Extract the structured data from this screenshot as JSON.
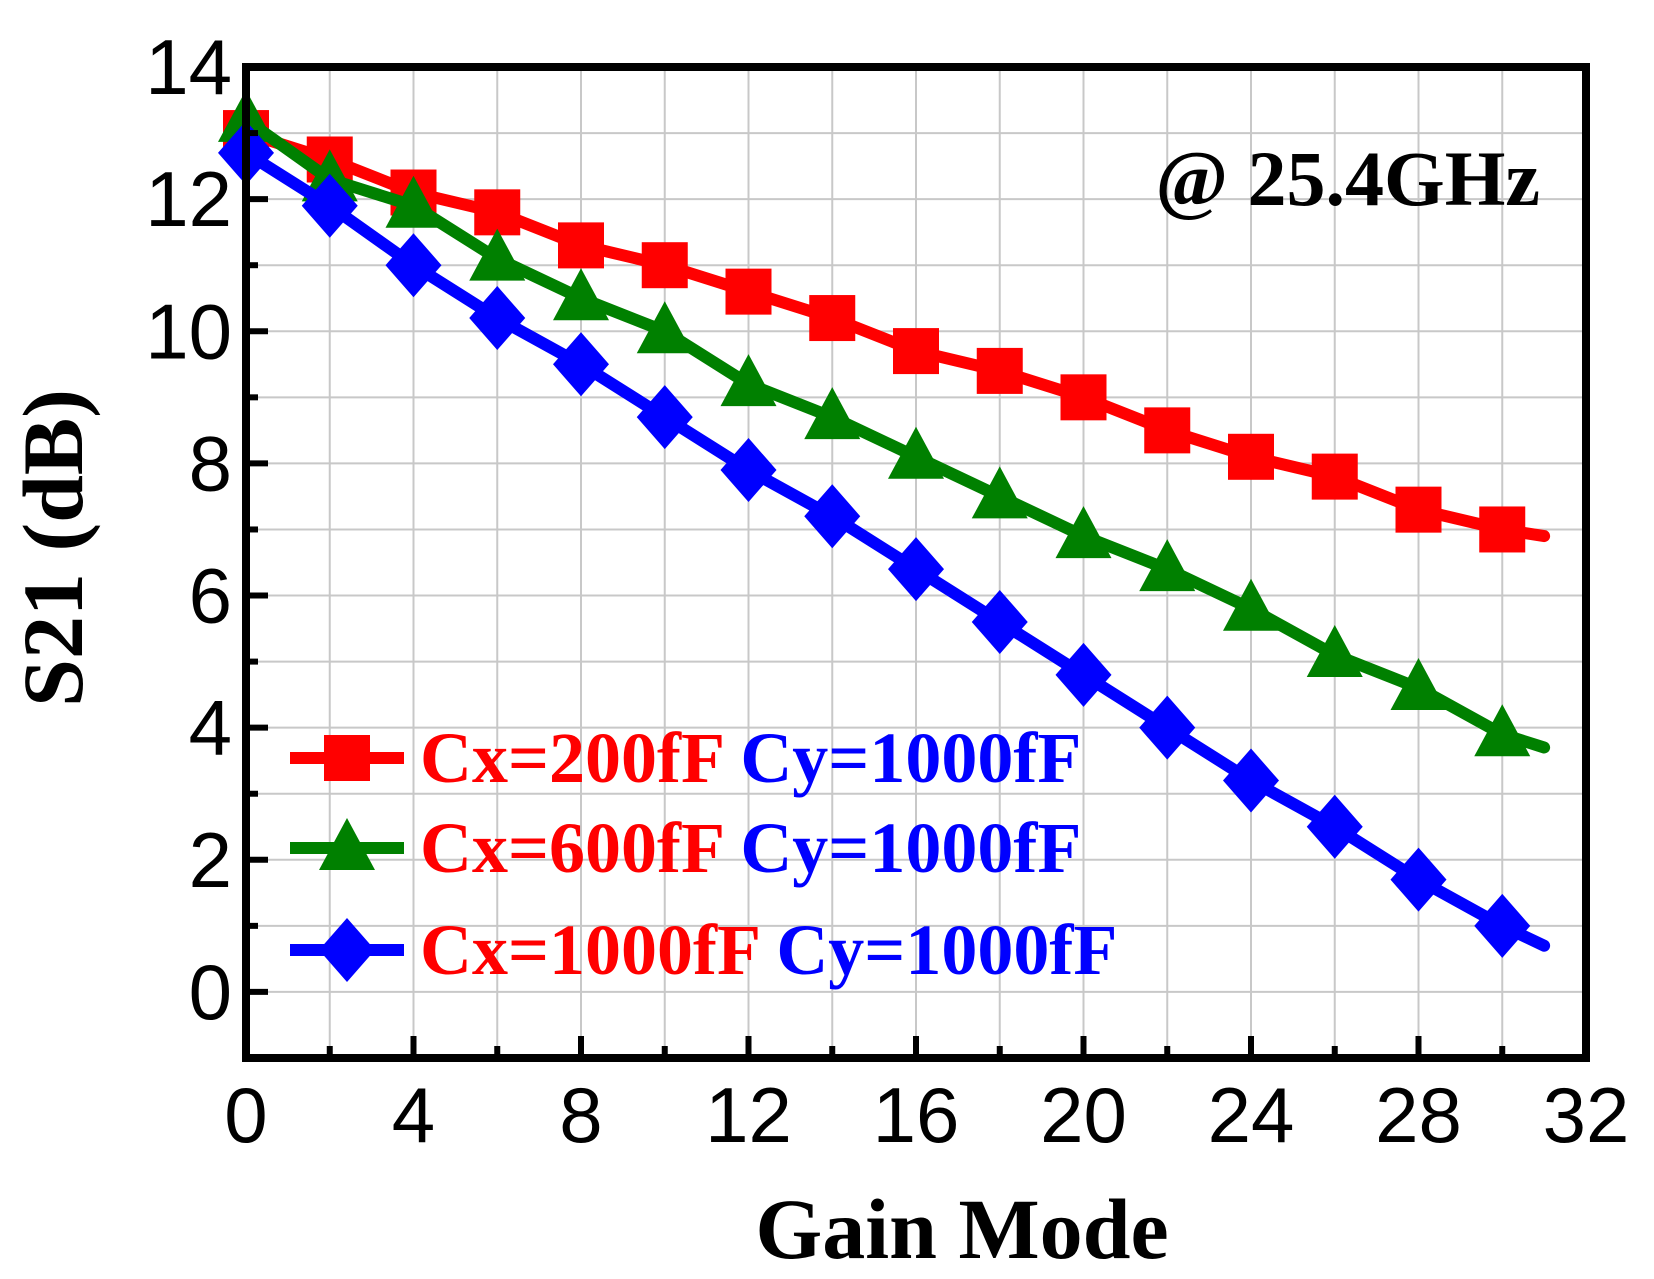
{
  "chart_data": {
    "type": "line",
    "title": "",
    "xlabel": "Gain Mode",
    "ylabel": "S21 (dB)",
    "xlim": [
      0,
      32
    ],
    "ylim": [
      -1,
      14
    ],
    "xticks": [
      0,
      4,
      8,
      12,
      16,
      20,
      24,
      28,
      32
    ],
    "yticks": [
      0,
      2,
      4,
      6,
      8,
      10,
      12,
      14
    ],
    "grid": true,
    "annotation": "@ 25.4GHz",
    "legend_position": "bottom-left",
    "x": [
      0,
      2,
      4,
      6,
      8,
      10,
      12,
      14,
      16,
      18,
      20,
      22,
      24,
      26,
      28,
      30,
      31
    ],
    "series": [
      {
        "name": "Cx=200fF Cy=1000fF",
        "name_parts": [
          "Cx=200fF",
          "Cy=1000fF"
        ],
        "color": "#ff0000",
        "marker": "square",
        "values": [
          13.0,
          12.6,
          12.1,
          11.8,
          11.3,
          11.0,
          10.6,
          10.2,
          9.7,
          9.4,
          9.0,
          8.5,
          8.1,
          7.8,
          7.3,
          7.0,
          6.9
        ]
      },
      {
        "name": "Cx=600fF Cy=1000fF",
        "name_parts": [
          "Cx=600fF",
          "Cy=1000fF"
        ],
        "color": "#008000",
        "marker": "triangle",
        "values": [
          13.2,
          12.3,
          11.9,
          11.1,
          10.5,
          10.0,
          9.2,
          8.7,
          8.1,
          7.5,
          6.9,
          6.4,
          5.8,
          5.1,
          4.6,
          3.9,
          3.7
        ]
      },
      {
        "name": "Cx=1000fF Cy=1000fF",
        "name_parts": [
          "Cx=1000fF",
          "Cy=1000fF"
        ],
        "color": "#0000ff",
        "marker": "diamond",
        "values": [
          12.7,
          11.9,
          11.0,
          10.2,
          9.5,
          8.7,
          7.9,
          7.2,
          6.4,
          5.6,
          4.8,
          4.0,
          3.2,
          2.5,
          1.7,
          1.0,
          0.7
        ]
      }
    ],
    "colors": {
      "label_cx": "#ff0000",
      "label_cy": "#0000ff",
      "axis": "#000000",
      "grid": "#c8c8c8"
    }
  }
}
